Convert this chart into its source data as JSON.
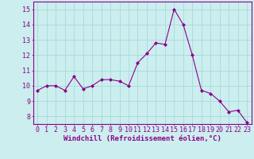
{
  "x": [
    0,
    1,
    2,
    3,
    4,
    5,
    6,
    7,
    8,
    9,
    10,
    11,
    12,
    13,
    14,
    15,
    16,
    17,
    18,
    19,
    20,
    21,
    22,
    23
  ],
  "y": [
    9.7,
    10.0,
    10.0,
    9.7,
    10.6,
    9.8,
    10.0,
    10.4,
    10.4,
    10.3,
    10.0,
    11.5,
    12.1,
    12.8,
    12.7,
    15.0,
    14.0,
    12.0,
    9.7,
    9.5,
    9.0,
    8.3,
    8.4,
    7.6
  ],
  "line_color": "#8b008b",
  "marker": "D",
  "marker_size": 2.0,
  "bg_color": "#cceeee",
  "grid_color": "#aadddd",
  "xlabel": "Windchill (Refroidissement éolien,°C)",
  "ylim": [
    7.5,
    15.5
  ],
  "yticks": [
    8,
    9,
    10,
    11,
    12,
    13,
    14,
    15
  ],
  "xticks": [
    0,
    1,
    2,
    3,
    4,
    5,
    6,
    7,
    8,
    9,
    10,
    11,
    12,
    13,
    14,
    15,
    16,
    17,
    18,
    19,
    20,
    21,
    22,
    23
  ],
  "tick_color": "#8b008b",
  "label_color": "#8b008b",
  "spine_color": "#8b008b",
  "font_size_xlabel": 6.5,
  "font_size_ticks": 6.0
}
